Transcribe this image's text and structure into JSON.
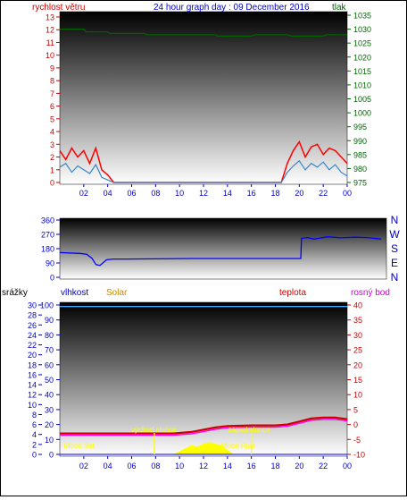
{
  "header": {
    "title": "24 hour graph day : 09 December 2016",
    "wind_label": "rychlost větru",
    "pressure_label": "tlak"
  },
  "bottom_labels": {
    "rain": "srážky",
    "humidity": "vlhkost",
    "solar": "Solar",
    "temp": "teplota",
    "dew": "rosný bod"
  },
  "colors": {
    "wind_gust": "#ff0000",
    "wind_avg": "#3a86c8",
    "pressure": "#006400",
    "direction": "#0000ff",
    "temp": "#cc0000",
    "dew": "#ff00ff",
    "humidity": "#4aa3ff",
    "solar": "#ffff00",
    "title": "#0000cc"
  },
  "chart_data": [
    {
      "type": "line",
      "title": "24 hour graph day : 09 December 2016",
      "x_ticks": [
        "02",
        "04",
        "06",
        "08",
        "10",
        "12",
        "14",
        "16",
        "18",
        "20",
        "22",
        "00"
      ],
      "y_left": {
        "label": "rychlost větru",
        "ticks": [
          0,
          1,
          2,
          3,
          4,
          5,
          6,
          7,
          8,
          9,
          10,
          11,
          12,
          13
        ],
        "range": [
          0,
          13
        ]
      },
      "y_right": {
        "label": "tlak",
        "ticks": [
          975,
          980,
          985,
          990,
          995,
          1000,
          1005,
          1010,
          1015,
          1020,
          1025,
          1030,
          1035
        ],
        "range": [
          975,
          1035
        ]
      },
      "series": [
        {
          "name": "wind_gust",
          "axis": "left",
          "x": [
            0,
            0.5,
            1,
            1.5,
            2,
            2.5,
            3,
            3.5,
            4,
            4.5,
            5,
            6,
            7,
            8,
            8.5,
            11,
            13,
            15,
            17.5,
            18,
            18.5,
            19,
            19.5,
            20,
            20.5,
            21,
            21.5,
            22,
            22.5,
            23,
            23.5,
            24
          ],
          "y": [
            2.5,
            1.8,
            2.7,
            2.0,
            2.5,
            1.5,
            2.7,
            1.0,
            0.6,
            0,
            0,
            0,
            0,
            0,
            0,
            0,
            0,
            0,
            0,
            0,
            0,
            1.5,
            2.5,
            3.2,
            2.0,
            2.8,
            3.0,
            2.2,
            2.7,
            2.5,
            2.0,
            1.5
          ]
        },
        {
          "name": "wind_avg",
          "axis": "left",
          "x": [
            0,
            0.5,
            1,
            1.5,
            2,
            2.5,
            3,
            3.5,
            4,
            4.5,
            5,
            18.5,
            19,
            19.5,
            20,
            20.5,
            21,
            21.5,
            22,
            22.5,
            23,
            23.5,
            24
          ],
          "y": [
            1.2,
            1.5,
            0.8,
            1.3,
            1.0,
            0.7,
            1.4,
            0.4,
            0.2,
            0,
            0,
            0,
            0.8,
            1.3,
            1.7,
            1.0,
            1.5,
            1.2,
            1.6,
            1.0,
            1.4,
            0.8,
            0.5
          ]
        },
        {
          "name": "pressure",
          "axis": "right",
          "x": [
            0,
            2,
            2.2,
            4,
            4.2,
            7,
            7.3,
            13,
            13.2,
            16,
            16.3,
            19,
            19.3,
            22,
            22.3,
            24
          ],
          "y": [
            1030.0,
            1030.0,
            1029.0,
            1029.0,
            1028.5,
            1028.5,
            1028.0,
            1028.0,
            1027.5,
            1027.5,
            1028.0,
            1028.0,
            1027.5,
            1027.5,
            1028.0,
            1028.0
          ]
        }
      ]
    },
    {
      "type": "line",
      "title": "",
      "x_ticks": [],
      "y_left": {
        "ticks": [
          0,
          90,
          180,
          270,
          360
        ],
        "range": [
          0,
          360
        ]
      },
      "y_right": {
        "ticks": [
          "N",
          "W",
          "S",
          "E",
          "N"
        ]
      },
      "series": [
        {
          "name": "direction",
          "x": [
            0,
            1.5,
            2.0,
            2.4,
            2.7,
            3.0,
            3.5,
            4.0,
            5,
            10,
            15,
            18,
            18.05,
            18.5,
            19,
            20,
            21,
            22,
            23,
            24
          ],
          "y": [
            155,
            150,
            145,
            120,
            80,
            75,
            110,
            115,
            115,
            118,
            118,
            118,
            245,
            250,
            240,
            255,
            248,
            252,
            250,
            240
          ]
        }
      ]
    },
    {
      "type": "line",
      "title": "",
      "x_ticks": [
        "02",
        "04",
        "06",
        "08",
        "10",
        "12",
        "14",
        "16",
        "18",
        "20",
        "22",
        "00"
      ],
      "y_left_rain": {
        "ticks": [
          0,
          2,
          4,
          6,
          8,
          10,
          12,
          14,
          16,
          18,
          20,
          22,
          24,
          26,
          28,
          30
        ],
        "range": [
          0,
          30
        ]
      },
      "y_left_humidity": {
        "ticks": [
          0,
          10,
          20,
          30,
          40,
          50,
          60,
          70,
          80,
          90,
          100
        ],
        "range": [
          0,
          100
        ]
      },
      "y_right_temp": {
        "ticks": [
          -10,
          -5,
          0,
          5,
          10,
          15,
          20,
          25,
          30,
          35,
          40
        ],
        "range": [
          -10,
          40
        ]
      },
      "annotations": [
        {
          "text": "Moon Set",
          "x": 0.2
        },
        {
          "text": "východ slunce",
          "x": 7.9
        },
        {
          "text": "západ slunce",
          "x": 16.0
        },
        {
          "text": "Moon Rise",
          "x": 13.4
        }
      ],
      "series": [
        {
          "name": "humidity",
          "axis": "humidity",
          "x": [
            0,
            24
          ],
          "y": [
            99,
            99
          ]
        },
        {
          "name": "temp",
          "axis": "temp",
          "x": [
            0,
            4,
            8,
            9.5,
            11,
            13,
            14,
            16,
            18,
            19,
            20,
            21,
            22,
            23,
            24
          ],
          "y": [
            -3,
            -3,
            -3,
            -3,
            -2.5,
            -1,
            -0.5,
            -0.3,
            -0.3,
            0,
            1,
            2,
            2.3,
            2.3,
            1.8
          ]
        },
        {
          "name": "dew",
          "axis": "temp",
          "x": [
            0,
            4,
            8,
            9.5,
            11,
            13,
            14,
            16,
            18,
            19,
            20,
            21,
            22,
            23,
            24
          ],
          "y": [
            -3.6,
            -3.6,
            -3.6,
            -3.6,
            -3.1,
            -1.6,
            -1.1,
            -0.9,
            -0.9,
            -0.6,
            0.4,
            1.4,
            1.7,
            1.7,
            1.2
          ]
        },
        {
          "name": "solar",
          "axis": "humidity",
          "x": [
            9.5,
            10.0,
            10.5,
            11.0,
            11.5,
            12.0,
            12.5,
            13.0,
            13.5,
            14.0,
            14.5
          ],
          "y": [
            0,
            2,
            4,
            6,
            5,
            7,
            8,
            7,
            6,
            3,
            0
          ]
        },
        {
          "name": "rain",
          "axis": "rain",
          "x": [
            0,
            24
          ],
          "y": [
            0,
            0
          ]
        }
      ]
    }
  ]
}
